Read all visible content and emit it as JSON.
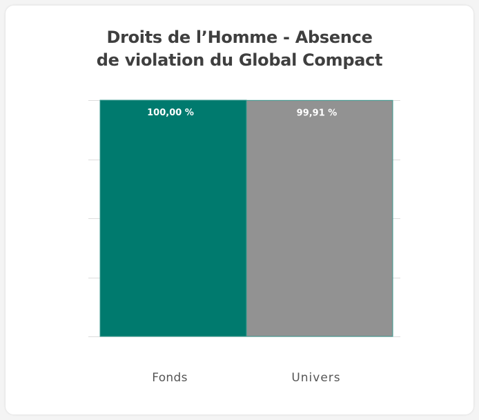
{
  "chart_data": {
    "type": "bar",
    "title_lines": [
      "Droits de l’Homme - Absence",
      "de violation du Global Compact"
    ],
    "categories": [
      "Fonds",
      "Univers"
    ],
    "values": [
      100.0,
      99.91
    ],
    "value_labels": [
      "100,00 %",
      "99,91 %"
    ],
    "ylim": [
      0,
      100
    ],
    "grid": true,
    "colors": [
      "#007a6e",
      "#929292"
    ]
  }
}
